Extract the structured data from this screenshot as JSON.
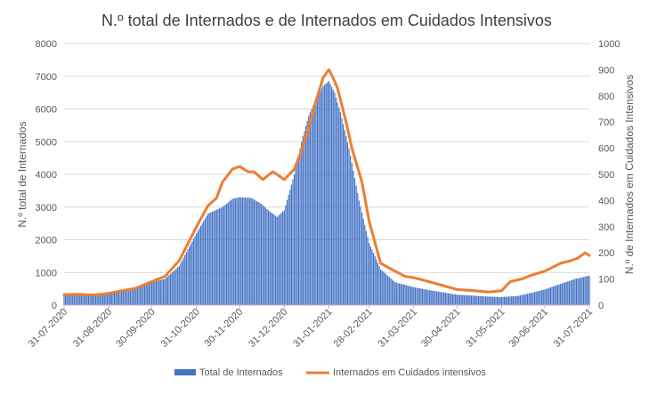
{
  "chart_data": {
    "type": "bar+line",
    "title": "N.º total de  Internados e de Internados em Cuidados Intensivos",
    "ylabel_left": "N.º total de Internados",
    "ylabel_right": "N.º de Internados em Cuidados Intensivos",
    "ylim_left": [
      0,
      8000
    ],
    "ylim_right": [
      0,
      1000
    ],
    "yticks_left": [
      "0",
      "1000",
      "2000",
      "3000",
      "4000",
      "5000",
      "6000",
      "7000",
      "8000"
    ],
    "yticks_right": [
      "0",
      "100",
      "200",
      "300",
      "400",
      "500",
      "600",
      "700",
      "800",
      "900",
      "1000"
    ],
    "xticks": [
      "31-07-2020",
      "31-08-2020",
      "30-09-2020",
      "31-10-2020",
      "30-11-2020",
      "31-12-2020",
      "31-01-2021",
      "28-02-2021",
      "31-03-2021",
      "30-04-2021",
      "31-05-2021",
      "30-06-2021",
      "31-07-2021"
    ],
    "xtick_days": [
      0,
      31,
      61,
      92,
      122,
      153,
      184,
      212,
      243,
      273,
      304,
      334,
      365
    ],
    "colors": {
      "bars": "#4472C4",
      "line": "#ED7D31",
      "grid": "#D9D9D9",
      "axis": "#BFBFBF"
    },
    "series": [
      {
        "name": "Total de Internados",
        "axis": "left",
        "kind": "bar",
        "days": [
          0,
          10,
          20,
          31,
          40,
          50,
          61,
          70,
          80,
          92,
          100,
          110,
          117,
          122,
          130,
          137,
          142,
          148,
          153,
          160,
          165,
          170,
          175,
          180,
          184,
          188,
          192,
          198,
          205,
          212,
          220,
          230,
          243,
          255,
          265,
          273,
          285,
          295,
          304,
          315,
          325,
          334,
          345,
          355,
          365
        ],
        "values": [
          350,
          360,
          350,
          380,
          450,
          500,
          700,
          800,
          1200,
          2200,
          2800,
          3000,
          3250,
          3300,
          3280,
          3100,
          2900,
          2700,
          2900,
          4000,
          5000,
          5800,
          6300,
          6700,
          6850,
          6500,
          5900,
          4800,
          3200,
          1900,
          1100,
          700,
          550,
          450,
          380,
          320,
          290,
          260,
          250,
          280,
          380,
          480,
          650,
          800,
          900
        ]
      },
      {
        "name": "Internados em Cuidados intensivos",
        "axis": "right",
        "kind": "line",
        "days": [
          0,
          10,
          20,
          31,
          40,
          50,
          61,
          70,
          80,
          92,
          100,
          106,
          110,
          117,
          122,
          128,
          132,
          138,
          145,
          148,
          153,
          160,
          165,
          170,
          175,
          180,
          184,
          186,
          190,
          196,
          200,
          207,
          212,
          220,
          230,
          237,
          243,
          250,
          260,
          273,
          285,
          295,
          304,
          310,
          318,
          325,
          334,
          345,
          352,
          357,
          362,
          365
        ],
        "values": [
          40,
          42,
          38,
          45,
          55,
          65,
          90,
          110,
          170,
          300,
          380,
          410,
          470,
          520,
          530,
          510,
          510,
          480,
          510,
          500,
          480,
          520,
          590,
          680,
          780,
          870,
          900,
          880,
          830,
          700,
          600,
          470,
          320,
          160,
          130,
          110,
          105,
          95,
          80,
          60,
          55,
          50,
          55,
          90,
          100,
          115,
          130,
          160,
          170,
          180,
          200,
          190
        ]
      }
    ],
    "legend": [
      "Total de Internados",
      "Internados em Cuidados intensivos"
    ],
    "legend_position": "bottom"
  }
}
